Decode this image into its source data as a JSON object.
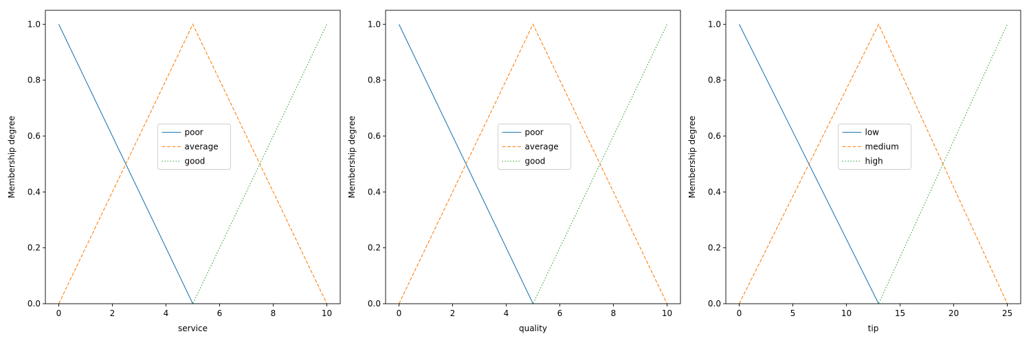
{
  "chart_data": [
    {
      "type": "line",
      "xlabel": "service",
      "ylabel": "Membership degree",
      "xlim": [
        -0.5,
        10.5
      ],
      "ylim": [
        0,
        1.05
      ],
      "xticks": [
        0,
        2,
        4,
        6,
        8,
        10
      ],
      "yticks": [
        0.0,
        0.2,
        0.4,
        0.6,
        0.8,
        1.0
      ],
      "legend_position": "center",
      "series": [
        {
          "name": "poor",
          "color": "#1f77b4",
          "style": "solid",
          "x": [
            0,
            5,
            10
          ],
          "y": [
            1,
            0,
            0
          ]
        },
        {
          "name": "average",
          "color": "#ff7f0e",
          "style": "dashed",
          "x": [
            0,
            5,
            10
          ],
          "y": [
            0,
            1,
            0
          ]
        },
        {
          "name": "good",
          "color": "#2ca02c",
          "style": "dotted",
          "x": [
            0,
            5,
            10
          ],
          "y": [
            0,
            0,
            1
          ]
        }
      ]
    },
    {
      "type": "line",
      "xlabel": "quality",
      "ylabel": "Membership degree",
      "xlim": [
        -0.5,
        10.5
      ],
      "ylim": [
        0,
        1.05
      ],
      "xticks": [
        0,
        2,
        4,
        6,
        8,
        10
      ],
      "yticks": [
        0.0,
        0.2,
        0.4,
        0.6,
        0.8,
        1.0
      ],
      "legend_position": "center",
      "series": [
        {
          "name": "poor",
          "color": "#1f77b4",
          "style": "solid",
          "x": [
            0,
            5,
            10
          ],
          "y": [
            1,
            0,
            0
          ]
        },
        {
          "name": "average",
          "color": "#ff7f0e",
          "style": "dashed",
          "x": [
            0,
            5,
            10
          ],
          "y": [
            0,
            1,
            0
          ]
        },
        {
          "name": "good",
          "color": "#2ca02c",
          "style": "dotted",
          "x": [
            0,
            5,
            10
          ],
          "y": [
            0,
            0,
            1
          ]
        }
      ]
    },
    {
      "type": "line",
      "xlabel": "tip",
      "ylabel": "Membership degree",
      "xlim": [
        -1.25,
        26.25
      ],
      "ylim": [
        0,
        1.05
      ],
      "xticks": [
        0,
        5,
        10,
        15,
        20,
        25
      ],
      "yticks": [
        0.0,
        0.2,
        0.4,
        0.6,
        0.8,
        1.0
      ],
      "legend_position": "center",
      "series": [
        {
          "name": "low",
          "color": "#1f77b4",
          "style": "solid",
          "x": [
            0,
            13,
            25
          ],
          "y": [
            1,
            0,
            0
          ]
        },
        {
          "name": "medium",
          "color": "#ff7f0e",
          "style": "dashed",
          "x": [
            0,
            13,
            25
          ],
          "y": [
            0,
            1,
            0
          ]
        },
        {
          "name": "high",
          "color": "#2ca02c",
          "style": "dotted",
          "x": [
            0,
            13,
            25
          ],
          "y": [
            0,
            0,
            1
          ]
        }
      ]
    }
  ]
}
